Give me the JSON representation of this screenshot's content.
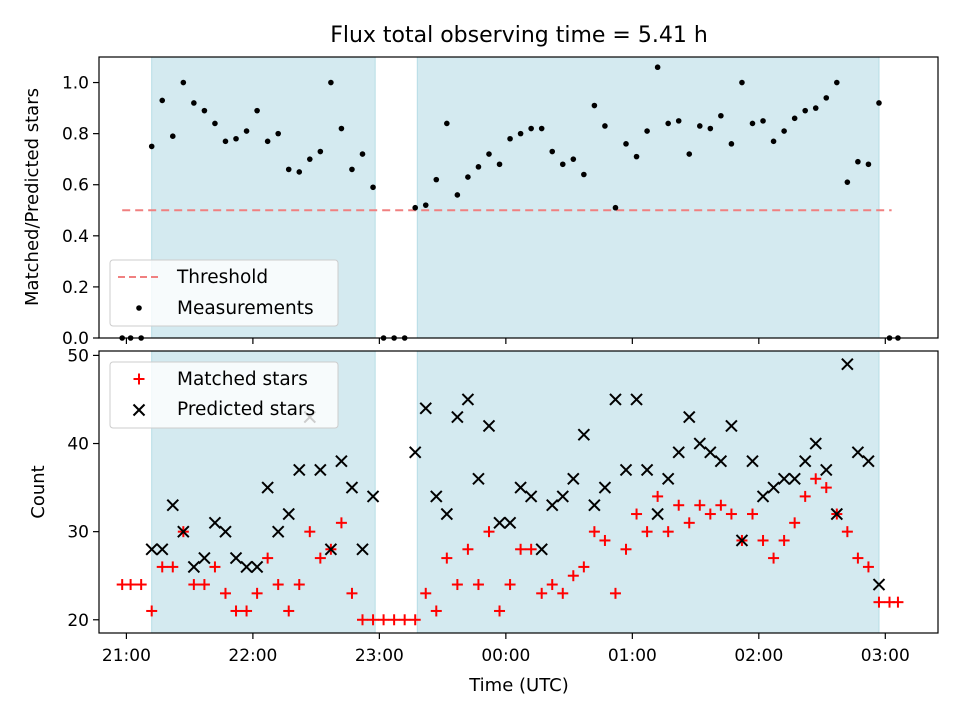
{
  "figure": {
    "title": "Flux total observing time = 5.41 h"
  },
  "colors": {
    "observing_band": "#d4eaf0",
    "observing_band_edge": "#b6dde6",
    "threshold": "#f08080",
    "measurements": "#000000",
    "matched": "#ff0000",
    "predicted": "#000000"
  },
  "chart_data": [
    {
      "type": "scatter",
      "ylabel": "Matched/Predicted stars",
      "ylim": [
        0,
        1.1
      ],
      "yticks": [
        "0.0",
        "0.2",
        "0.4",
        "0.6",
        "0.8",
        "1.0"
      ],
      "xlim": [
        "20:47",
        "03:25"
      ],
      "xticks": [
        "21:00",
        "22:00",
        "23:00",
        "00:00",
        "01:00",
        "02:00",
        "03:00"
      ],
      "observing_windows": [
        [
          "21:12",
          "22:58"
        ],
        [
          "23:18",
          "02:57"
        ]
      ],
      "legend": {
        "position": "lower left",
        "entries": [
          "Threshold",
          "Measurements"
        ]
      },
      "threshold": {
        "name": "Threshold",
        "value": 0.5,
        "x_range": [
          "20:58",
          "03:03"
        ]
      },
      "series": [
        {
          "name": "Measurements",
          "marker": "dot",
          "points": [
            [
              "20:58",
              0.0
            ],
            [
              "21:02",
              0.0
            ],
            [
              "21:07",
              0.0
            ],
            [
              "21:12",
              0.75
            ],
            [
              "21:17",
              0.93
            ],
            [
              "21:22",
              0.79
            ],
            [
              "21:27",
              1.0
            ],
            [
              "21:32",
              0.92
            ],
            [
              "21:37",
              0.89
            ],
            [
              "21:42",
              0.84
            ],
            [
              "21:47",
              0.77
            ],
            [
              "21:52",
              0.78
            ],
            [
              "21:57",
              0.81
            ],
            [
              "22:02",
              0.89
            ],
            [
              "22:07",
              0.77
            ],
            [
              "22:12",
              0.8
            ],
            [
              "22:17",
              0.66
            ],
            [
              "22:22",
              0.65
            ],
            [
              "22:27",
              0.7
            ],
            [
              "22:32",
              0.73
            ],
            [
              "22:37",
              1.0
            ],
            [
              "22:42",
              0.82
            ],
            [
              "22:47",
              0.66
            ],
            [
              "22:52",
              0.72
            ],
            [
              "22:57",
              0.59
            ],
            [
              "23:02",
              0.0
            ],
            [
              "23:07",
              0.0
            ],
            [
              "23:12",
              0.0
            ],
            [
              "23:17",
              0.51
            ],
            [
              "23:22",
              0.52
            ],
            [
              "23:27",
              0.62
            ],
            [
              "23:32",
              0.84
            ],
            [
              "23:37",
              0.56
            ],
            [
              "23:42",
              0.63
            ],
            [
              "23:47",
              0.67
            ],
            [
              "23:52",
              0.72
            ],
            [
              "23:57",
              0.68
            ],
            [
              "00:02",
              0.78
            ],
            [
              "00:07",
              0.8
            ],
            [
              "00:12",
              0.82
            ],
            [
              "00:17",
              0.82
            ],
            [
              "00:22",
              0.73
            ],
            [
              "00:27",
              0.68
            ],
            [
              "00:32",
              0.7
            ],
            [
              "00:37",
              0.64
            ],
            [
              "00:42",
              0.91
            ],
            [
              "00:47",
              0.83
            ],
            [
              "00:52",
              0.51
            ],
            [
              "00:57",
              0.76
            ],
            [
              "01:02",
              0.71
            ],
            [
              "01:07",
              0.81
            ],
            [
              "01:12",
              1.06
            ],
            [
              "01:17",
              0.84
            ],
            [
              "01:22",
              0.85
            ],
            [
              "01:27",
              0.72
            ],
            [
              "01:32",
              0.83
            ],
            [
              "01:37",
              0.82
            ],
            [
              "01:42",
              0.87
            ],
            [
              "01:47",
              0.76
            ],
            [
              "01:52",
              1.0
            ],
            [
              "01:57",
              0.84
            ],
            [
              "02:02",
              0.85
            ],
            [
              "02:07",
              0.77
            ],
            [
              "02:12",
              0.81
            ],
            [
              "02:17",
              0.86
            ],
            [
              "02:22",
              0.89
            ],
            [
              "02:27",
              0.9
            ],
            [
              "02:32",
              0.94
            ],
            [
              "02:37",
              1.0
            ],
            [
              "02:42",
              0.61
            ],
            [
              "02:47",
              0.69
            ],
            [
              "02:52",
              0.68
            ],
            [
              "02:57",
              0.92
            ],
            [
              "03:02",
              0.0
            ],
            [
              "03:06",
              0.0
            ]
          ]
        }
      ]
    },
    {
      "type": "scatter",
      "xlabel": "Time (UTC)",
      "ylabel": "Count",
      "ylim": [
        18.5,
        50.5
      ],
      "yticks": [
        "20",
        "30",
        "40",
        "50"
      ],
      "xlim": [
        "20:47",
        "03:25"
      ],
      "xticks": [
        "21:00",
        "22:00",
        "23:00",
        "00:00",
        "01:00",
        "02:00",
        "03:00"
      ],
      "observing_windows": [
        [
          "21:12",
          "22:58"
        ],
        [
          "23:18",
          "02:57"
        ]
      ],
      "legend": {
        "position": "upper left",
        "entries": [
          "Matched stars",
          "Predicted stars"
        ]
      },
      "series": [
        {
          "name": "Matched stars",
          "marker": "plus",
          "points": [
            [
              "20:58",
              24
            ],
            [
              "21:02",
              24
            ],
            [
              "21:07",
              24
            ],
            [
              "21:12",
              21
            ],
            [
              "21:17",
              26
            ],
            [
              "21:22",
              26
            ],
            [
              "21:27",
              30
            ],
            [
              "21:32",
              24
            ],
            [
              "21:37",
              24
            ],
            [
              "21:42",
              26
            ],
            [
              "21:47",
              23
            ],
            [
              "21:52",
              21
            ],
            [
              "21:57",
              21
            ],
            [
              "22:02",
              23
            ],
            [
              "22:07",
              27
            ],
            [
              "22:12",
              24
            ],
            [
              "22:17",
              21
            ],
            [
              "22:22",
              24
            ],
            [
              "22:27",
              30
            ],
            [
              "22:32",
              27
            ],
            [
              "22:37",
              28
            ],
            [
              "22:42",
              31
            ],
            [
              "22:47",
              23
            ],
            [
              "22:52",
              20
            ],
            [
              "22:57",
              20
            ],
            [
              "23:02",
              20
            ],
            [
              "23:07",
              20
            ],
            [
              "23:12",
              20
            ],
            [
              "23:17",
              20
            ],
            [
              "23:22",
              23
            ],
            [
              "23:27",
              21
            ],
            [
              "23:32",
              27
            ],
            [
              "23:37",
              24
            ],
            [
              "23:42",
              28
            ],
            [
              "23:47",
              24
            ],
            [
              "23:52",
              30
            ],
            [
              "23:57",
              21
            ],
            [
              "00:02",
              24
            ],
            [
              "00:07",
              28
            ],
            [
              "00:12",
              28
            ],
            [
              "00:17",
              23
            ],
            [
              "00:22",
              24
            ],
            [
              "00:27",
              23
            ],
            [
              "00:32",
              25
            ],
            [
              "00:37",
              26
            ],
            [
              "00:42",
              30
            ],
            [
              "00:47",
              29
            ],
            [
              "00:52",
              23
            ],
            [
              "00:57",
              28
            ],
            [
              "01:02",
              32
            ],
            [
              "01:07",
              30
            ],
            [
              "01:12",
              34
            ],
            [
              "01:17",
              30
            ],
            [
              "01:22",
              33
            ],
            [
              "01:27",
              31
            ],
            [
              "01:32",
              33
            ],
            [
              "01:37",
              32
            ],
            [
              "01:42",
              33
            ],
            [
              "01:47",
              32
            ],
            [
              "01:52",
              29
            ],
            [
              "01:57",
              32
            ],
            [
              "02:02",
              29
            ],
            [
              "02:07",
              27
            ],
            [
              "02:12",
              29
            ],
            [
              "02:17",
              31
            ],
            [
              "02:22",
              34
            ],
            [
              "02:27",
              36
            ],
            [
              "02:32",
              35
            ],
            [
              "02:37",
              32
            ],
            [
              "02:42",
              30
            ],
            [
              "02:47",
              27
            ],
            [
              "02:52",
              26
            ],
            [
              "02:57",
              22
            ],
            [
              "03:02",
              22
            ],
            [
              "03:06",
              22
            ]
          ]
        },
        {
          "name": "Predicted stars",
          "marker": "x",
          "points": [
            [
              "21:12",
              28
            ],
            [
              "21:17",
              28
            ],
            [
              "21:22",
              33
            ],
            [
              "21:27",
              30
            ],
            [
              "21:32",
              26
            ],
            [
              "21:37",
              27
            ],
            [
              "21:42",
              31
            ],
            [
              "21:47",
              30
            ],
            [
              "21:52",
              27
            ],
            [
              "21:57",
              26
            ],
            [
              "22:02",
              26
            ],
            [
              "22:07",
              35
            ],
            [
              "22:12",
              30
            ],
            [
              "22:17",
              32
            ],
            [
              "22:22",
              37
            ],
            [
              "22:27",
              43
            ],
            [
              "22:32",
              37
            ],
            [
              "22:37",
              28
            ],
            [
              "22:42",
              38
            ],
            [
              "22:47",
              35
            ],
            [
              "22:52",
              28
            ],
            [
              "22:57",
              34
            ],
            [
              "23:17",
              39
            ],
            [
              "23:22",
              44
            ],
            [
              "23:27",
              34
            ],
            [
              "23:32",
              32
            ],
            [
              "23:37",
              43
            ],
            [
              "23:42",
              45
            ],
            [
              "23:47",
              36
            ],
            [
              "23:52",
              42
            ],
            [
              "23:57",
              31
            ],
            [
              "00:02",
              31
            ],
            [
              "00:07",
              35
            ],
            [
              "00:12",
              34
            ],
            [
              "00:17",
              28
            ],
            [
              "00:22",
              33
            ],
            [
              "00:27",
              34
            ],
            [
              "00:32",
              36
            ],
            [
              "00:37",
              41
            ],
            [
              "00:42",
              33
            ],
            [
              "00:47",
              35
            ],
            [
              "00:52",
              45
            ],
            [
              "00:57",
              37
            ],
            [
              "01:02",
              45
            ],
            [
              "01:07",
              37
            ],
            [
              "01:12",
              32
            ],
            [
              "01:17",
              36
            ],
            [
              "01:22",
              39
            ],
            [
              "01:27",
              43
            ],
            [
              "01:32",
              40
            ],
            [
              "01:37",
              39
            ],
            [
              "01:42",
              38
            ],
            [
              "01:47",
              42
            ],
            [
              "01:52",
              29
            ],
            [
              "01:57",
              38
            ],
            [
              "02:02",
              34
            ],
            [
              "02:07",
              35
            ],
            [
              "02:12",
              36
            ],
            [
              "02:17",
              36
            ],
            [
              "02:22",
              38
            ],
            [
              "02:27",
              40
            ],
            [
              "02:32",
              37
            ],
            [
              "02:37",
              32
            ],
            [
              "02:42",
              49
            ],
            [
              "02:47",
              39
            ],
            [
              "02:52",
              38
            ],
            [
              "02:57",
              24
            ]
          ]
        }
      ]
    }
  ]
}
